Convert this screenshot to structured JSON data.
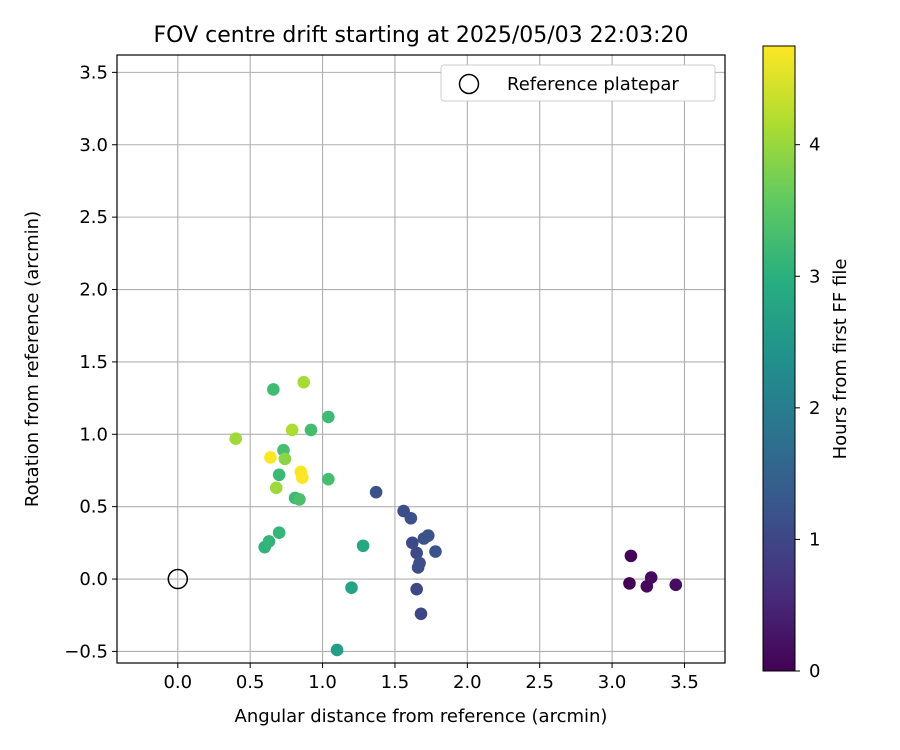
{
  "chart_data": {
    "type": "scatter",
    "title": "FOV centre drift starting at 2025/05/03 22:03:20",
    "xlabel": "Angular distance from reference (arcmin)",
    "ylabel": "Rotation from reference (arcmin)",
    "xlim": [
      -0.42,
      3.78
    ],
    "ylim": [
      -0.58,
      3.62
    ],
    "xticks": [
      0.0,
      0.5,
      1.0,
      1.5,
      2.0,
      2.5,
      3.0,
      3.5
    ],
    "xtick_labels": [
      "0.0",
      "0.5",
      "1.0",
      "1.5",
      "2.0",
      "2.5",
      "3.0",
      "3.5"
    ],
    "yticks": [
      -0.5,
      0.0,
      0.5,
      1.0,
      1.5,
      2.0,
      2.5,
      3.0,
      3.5
    ],
    "ytick_labels": [
      "−0.5",
      "0.0",
      "0.5",
      "1.0",
      "1.5",
      "2.0",
      "2.5",
      "3.0",
      "3.5"
    ],
    "grid": true,
    "legend": {
      "position": "top-right",
      "entries": [
        "Reference platepar"
      ]
    },
    "colorbar": {
      "label": "Hours from first FF file",
      "colormap": "viridis",
      "range": [
        0,
        4.75
      ],
      "ticks": [
        0,
        1,
        2,
        3,
        4
      ],
      "tick_labels": [
        "0",
        "1",
        "2",
        "3",
        "4"
      ]
    },
    "reference_point": {
      "x": 0.0,
      "y": 0.0
    },
    "series": [
      {
        "points": [
          {
            "x": 3.12,
            "y": -0.03,
            "hours": 0.02
          },
          {
            "x": 3.13,
            "y": 0.16,
            "hours": 0.06
          },
          {
            "x": 3.24,
            "y": -0.05,
            "hours": 0.1
          },
          {
            "x": 3.27,
            "y": 0.01,
            "hours": 0.14
          },
          {
            "x": 3.44,
            "y": -0.04,
            "hours": 0.18
          },
          {
            "x": 1.37,
            "y": 0.6,
            "hours": 1.18
          },
          {
            "x": 1.56,
            "y": 0.47,
            "hours": 1.12
          },
          {
            "x": 1.61,
            "y": 0.42,
            "hours": 1.16
          },
          {
            "x": 1.62,
            "y": 0.25,
            "hours": 1.04
          },
          {
            "x": 1.65,
            "y": 0.18,
            "hours": 1.06
          },
          {
            "x": 1.66,
            "y": 0.08,
            "hours": 1.1
          },
          {
            "x": 1.67,
            "y": 0.11,
            "hours": 1.14
          },
          {
            "x": 1.65,
            "y": -0.07,
            "hours": 1.02
          },
          {
            "x": 1.68,
            "y": -0.24,
            "hours": 1.0
          },
          {
            "x": 1.7,
            "y": 0.28,
            "hours": 1.2
          },
          {
            "x": 1.73,
            "y": 0.3,
            "hours": 1.22
          },
          {
            "x": 1.78,
            "y": 0.19,
            "hours": 1.24
          },
          {
            "x": 1.1,
            "y": -0.49,
            "hours": 2.65
          },
          {
            "x": 1.2,
            "y": -0.06,
            "hours": 2.75
          },
          {
            "x": 1.28,
            "y": 0.23,
            "hours": 2.8
          },
          {
            "x": 0.6,
            "y": 0.22,
            "hours": 3.05
          },
          {
            "x": 0.63,
            "y": 0.26,
            "hours": 3.1
          },
          {
            "x": 0.7,
            "y": 0.32,
            "hours": 3.12
          },
          {
            "x": 0.66,
            "y": 1.31,
            "hours": 3.25
          },
          {
            "x": 0.7,
            "y": 0.72,
            "hours": 3.18
          },
          {
            "x": 0.73,
            "y": 0.89,
            "hours": 3.3
          },
          {
            "x": 0.81,
            "y": 0.56,
            "hours": 3.2
          },
          {
            "x": 0.84,
            "y": 0.55,
            "hours": 3.35
          },
          {
            "x": 0.92,
            "y": 1.03,
            "hours": 3.28
          },
          {
            "x": 1.04,
            "y": 1.12,
            "hours": 3.22
          },
          {
            "x": 1.04,
            "y": 0.69,
            "hours": 3.3
          },
          {
            "x": 0.74,
            "y": 0.83,
            "hours": 3.9
          },
          {
            "x": 0.68,
            "y": 0.63,
            "hours": 4.05
          },
          {
            "x": 0.79,
            "y": 1.03,
            "hours": 4.15
          },
          {
            "x": 0.4,
            "y": 0.97,
            "hours": 4.05
          },
          {
            "x": 0.87,
            "y": 1.36,
            "hours": 4.1
          },
          {
            "x": 0.64,
            "y": 0.84,
            "hours": 4.75
          },
          {
            "x": 0.85,
            "y": 0.74,
            "hours": 4.7
          },
          {
            "x": 0.86,
            "y": 0.7,
            "hours": 4.72
          }
        ]
      }
    ]
  }
}
